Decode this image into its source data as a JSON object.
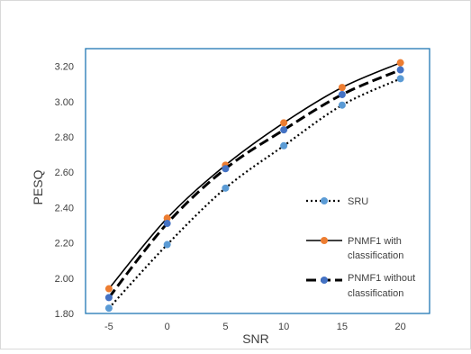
{
  "chart_data": {
    "type": "line",
    "xlabel": "SNR",
    "ylabel": "PESQ",
    "x": [
      -5,
      0,
      5,
      10,
      15,
      20
    ],
    "x_ticks": [
      "-5",
      "0",
      "5",
      "10",
      "15",
      "20"
    ],
    "ylim": [
      1.8,
      3.3
    ],
    "y_ticks": [
      "1.80",
      "2.00",
      "2.20",
      "2.40",
      "2.60",
      "2.80",
      "3.00",
      "3.20"
    ],
    "grid": "none",
    "legend_position": "right",
    "series": [
      {
        "name": "SRU",
        "line_style": "dotted",
        "line_color": "#000000",
        "marker_color": "#5B9BD5",
        "values": [
          1.83,
          2.19,
          2.51,
          2.75,
          2.98,
          3.13
        ]
      },
      {
        "name": "PNMF1 with classification",
        "name_lines": [
          "PNMF1 with",
          "classification"
        ],
        "line_style": "solid",
        "line_color": "#000000",
        "marker_color": "#ED7D31",
        "values": [
          1.94,
          2.34,
          2.64,
          2.88,
          3.08,
          3.22
        ]
      },
      {
        "name": "PNMF1 without classification",
        "name_lines": [
          "PNMF1 without",
          "classification"
        ],
        "line_style": "dashed",
        "line_color": "#000000",
        "marker_color": "#4472C4",
        "values": [
          1.89,
          2.31,
          2.62,
          2.84,
          3.04,
          3.18
        ]
      }
    ]
  }
}
